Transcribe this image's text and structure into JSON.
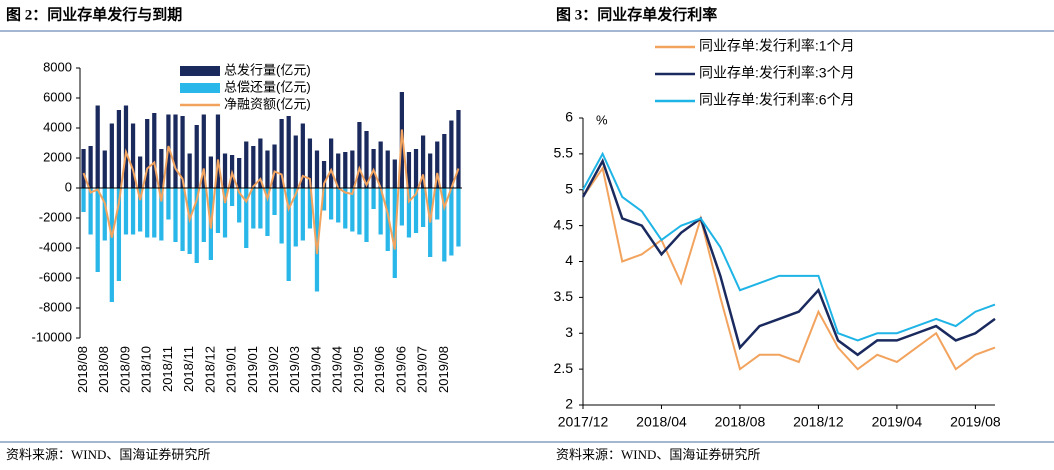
{
  "chart_data": [
    {
      "type": "bar",
      "title": "图 2：同业存单发行与到期",
      "source": "资料来源：WIND、国海证券研究所",
      "categories": [
        "2018/08",
        null,
        null,
        "2018/08",
        null,
        null,
        "2018/09",
        null,
        null,
        "2018/10",
        null,
        null,
        "2018/11",
        null,
        null,
        "2018/11",
        null,
        null,
        "2018/12",
        null,
        null,
        "2019/01",
        null,
        null,
        "2019/01",
        null,
        null,
        "2019/02",
        null,
        null,
        "2019/03",
        null,
        null,
        "2019/04",
        null,
        null,
        "2019/04",
        null,
        null,
        "2019/05",
        null,
        null,
        "2019/06",
        null,
        null,
        "2019/06",
        null,
        null,
        "2019/07",
        null,
        null,
        "2019/08",
        null,
        null
      ],
      "series": [
        {
          "name": "总发行量(亿元)",
          "color": "#1b2a5c",
          "values": [
            2600,
            2800,
            5500,
            2500,
            4300,
            5200,
            5500,
            4300,
            2100,
            4600,
            5000,
            2600,
            4900,
            4900,
            4800,
            2300,
            4200,
            4900,
            2100,
            4900,
            2300,
            2200,
            2000,
            3100,
            2800,
            3300,
            2500,
            2900,
            4600,
            4800,
            3500,
            4300,
            3300,
            2500,
            1800,
            3300,
            2300,
            2400,
            2500,
            4400,
            3800,
            2600,
            3100,
            2500,
            1900,
            6400,
            2400,
            2600,
            3500,
            2300,
            3100,
            3600,
            4500,
            5200
          ]
        },
        {
          "name": "总偿还量(亿元)",
          "color": "#29b6e8",
          "values": [
            -1600,
            -3100,
            -5600,
            -3500,
            -7600,
            -6200,
            -3100,
            -3100,
            -2900,
            -3300,
            -3300,
            -3500,
            -2100,
            -3600,
            -4200,
            -4400,
            -5000,
            -3600,
            -4800,
            -3000,
            -3300,
            -1200,
            -2300,
            -4000,
            -2700,
            -2700,
            -3200,
            -1800,
            -3700,
            -6200,
            -3900,
            -3500,
            -2700,
            -6900,
            -1500,
            -2100,
            -2300,
            -2700,
            -2900,
            -3100,
            -3600,
            -1400,
            -3100,
            -4200,
            -6000,
            -2500,
            -3300,
            -3000,
            -2600,
            -4600,
            -2100,
            -4900,
            -4500,
            -3900
          ]
        },
        {
          "name": "净融资额(亿元)",
          "color": "#f2a35e",
          "type": "line",
          "values": [
            1000,
            -300,
            -100,
            -1000,
            -3300,
            -1000,
            2400,
            1200,
            -800,
            1300,
            1700,
            -900,
            2800,
            1300,
            600,
            -2100,
            -800,
            1300,
            -2700,
            1900,
            -1000,
            1000,
            -300,
            -900,
            100,
            600,
            -700,
            1100,
            900,
            -1400,
            -400,
            800,
            600,
            -4400,
            300,
            1200,
            0,
            -300,
            -400,
            1300,
            200,
            1200,
            0,
            -1700,
            -4100,
            3900,
            -900,
            -400,
            900,
            -2300,
            1000,
            -1300,
            0,
            1300
          ]
        }
      ],
      "ylim": [
        -10000,
        8000
      ],
      "yticks": [
        -10000,
        -8000,
        -6000,
        -4000,
        -2000,
        0,
        2000,
        4000,
        6000,
        8000
      ]
    },
    {
      "type": "line",
      "title": "图 3：同业存单发行利率",
      "source": "资料来源：WIND、国海证券研究所",
      "unit": "%",
      "categories": [
        "2017/12",
        null,
        null,
        null,
        "2018/04",
        null,
        null,
        null,
        "2018/08",
        null,
        null,
        null,
        "2018/12",
        null,
        null,
        null,
        "2019/04",
        null,
        null,
        null,
        "2019/08",
        null
      ],
      "series": [
        {
          "name": "同业存单:发行利率:1个月",
          "color": "#f2a35e",
          "values": [
            4.9,
            5.3,
            4.0,
            4.1,
            4.3,
            3.7,
            4.6,
            3.5,
            2.5,
            2.7,
            2.7,
            2.6,
            3.3,
            2.8,
            2.5,
            2.7,
            2.6,
            2.8,
            3.0,
            2.5,
            2.7,
            2.8
          ]
        },
        {
          "name": "同业存单:发行利率:3个月",
          "color": "#1a2a5e",
          "values": [
            4.9,
            5.4,
            4.6,
            4.5,
            4.1,
            4.4,
            4.6,
            3.8,
            2.8,
            3.1,
            3.2,
            3.3,
            3.6,
            2.9,
            2.7,
            2.9,
            2.9,
            3.0,
            3.1,
            2.9,
            3.0,
            3.2
          ]
        },
        {
          "name": "同业存单:发行利率:6个月",
          "color": "#1fb4e6",
          "values": [
            5.0,
            5.5,
            4.9,
            4.7,
            4.3,
            4.5,
            4.6,
            4.2,
            3.6,
            3.7,
            3.8,
            3.8,
            3.8,
            3.0,
            2.9,
            3.0,
            3.0,
            3.1,
            3.2,
            3.1,
            3.3,
            3.4
          ]
        }
      ],
      "ylim": [
        2,
        6
      ],
      "yticks": [
        2,
        2.5,
        3,
        3.5,
        4,
        4.5,
        5,
        5.5,
        6
      ]
    }
  ]
}
